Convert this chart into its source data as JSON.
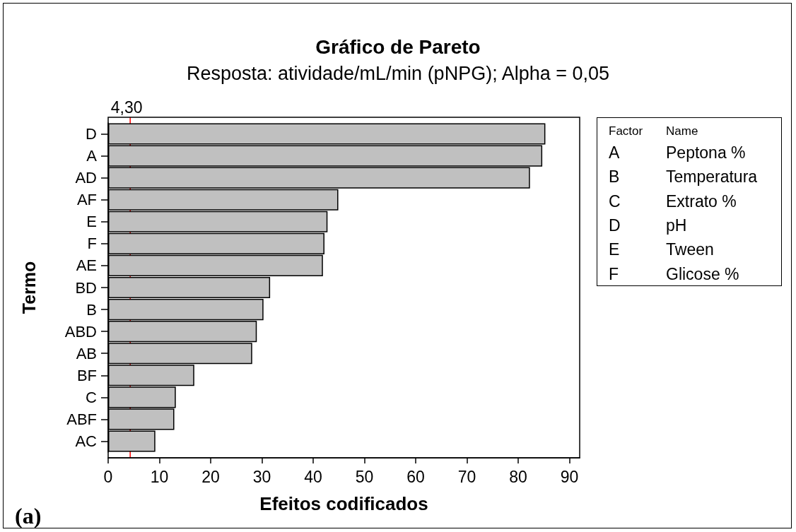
{
  "chart_data": {
    "type": "bar",
    "orientation": "horizontal",
    "title": "Gráfico de Pareto",
    "subtitle": "Resposta: atividade/mL/min (pNPG); Alpha = 0,05",
    "xlabel": "Efeitos codificados",
    "ylabel": "Termo",
    "categories": [
      "D",
      "A",
      "AD",
      "AF",
      "E",
      "F",
      "AE",
      "BD",
      "B",
      "ABD",
      "AB",
      "BF",
      "C",
      "ABF",
      "AC"
    ],
    "values": [
      85.3,
      84.7,
      82.3,
      44.9,
      42.8,
      42.2,
      41.9,
      31.6,
      30.3,
      29.0,
      28.1,
      16.8,
      13.2,
      12.9,
      9.2
    ],
    "color": "#c0c0c0",
    "xlim": [
      0,
      92
    ],
    "xticks": [
      0,
      10,
      20,
      30,
      40,
      50,
      60,
      70,
      80,
      90
    ],
    "grid": false,
    "ref_lines": [
      {
        "axis": "x",
        "value": 4.3,
        "label": "4,30",
        "color": "#ff0000"
      }
    ],
    "annotations": [
      "Factor",
      "Name",
      "A",
      "Peptona %",
      "B",
      "Temperatura",
      "C",
      "Extrato %",
      "D",
      "pH",
      "E",
      "Tween",
      "F",
      "Glicose %",
      "(a)"
    ]
  }
}
